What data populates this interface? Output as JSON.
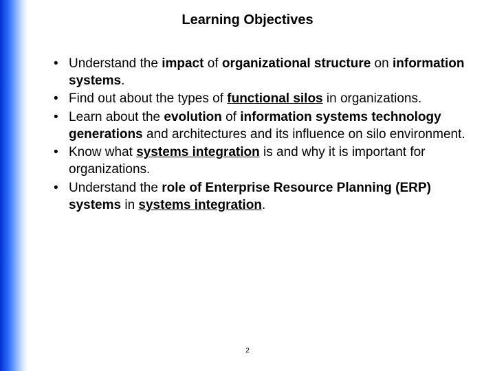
{
  "slide": {
    "title": "Learning Objectives",
    "page_number": "2",
    "background_color": "#ffffff",
    "text_color": "#000000",
    "gradient": {
      "from": "#0033cc",
      "to": "#ffffff"
    },
    "title_fontsize": 20,
    "body_fontsize": 19,
    "bullets": [
      {
        "runs": [
          {
            "t": "Understand the ",
            "style": ""
          },
          {
            "t": "impact",
            "style": "b"
          },
          {
            "t": " of ",
            "style": ""
          },
          {
            "t": "organizational structure",
            "style": "b"
          },
          {
            "t": " on ",
            "style": ""
          },
          {
            "t": "information systems",
            "style": "b"
          },
          {
            "t": ".",
            "style": ""
          }
        ]
      },
      {
        "runs": [
          {
            "t": "Find out about the types of ",
            "style": ""
          },
          {
            "t": "functional silos",
            "style": "bu"
          },
          {
            "t": " in organizations.",
            "style": ""
          }
        ]
      },
      {
        "runs": [
          {
            "t": "Learn about the ",
            "style": ""
          },
          {
            "t": "evolution",
            "style": "b"
          },
          {
            "t": " of ",
            "style": ""
          },
          {
            "t": "information systems technology generations",
            "style": "b"
          },
          {
            "t": " and architectures and its influence on silo environment.",
            "style": ""
          }
        ]
      },
      {
        "runs": [
          {
            "t": "Know what ",
            "style": ""
          },
          {
            "t": "systems integration",
            "style": "bu"
          },
          {
            "t": " is and why it is important for organizations.",
            "style": ""
          }
        ]
      },
      {
        "runs": [
          {
            "t": "Understand the ",
            "style": ""
          },
          {
            "t": "role of Enterprise Resource Planning (ERP) systems",
            "style": "b"
          },
          {
            "t": " in ",
            "style": ""
          },
          {
            "t": "systems integration",
            "style": "bu"
          },
          {
            "t": ".",
            "style": ""
          }
        ]
      }
    ]
  }
}
